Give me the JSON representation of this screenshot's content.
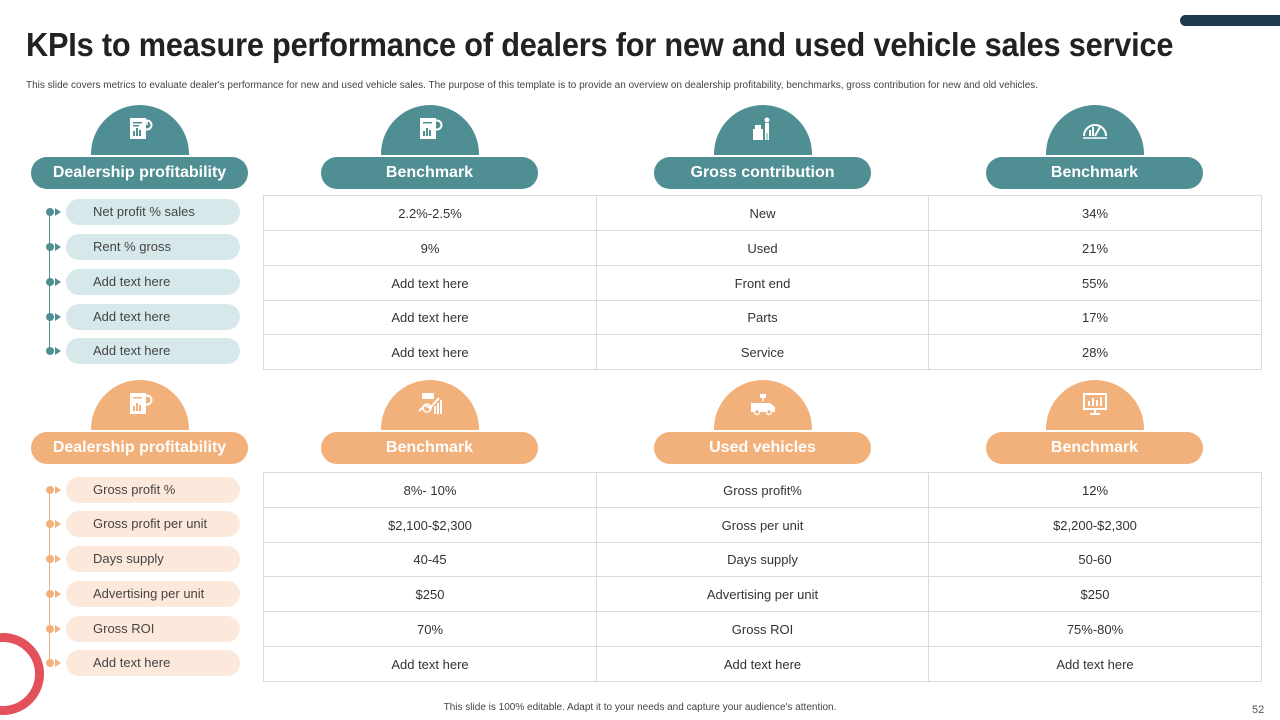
{
  "title": "KPIs to measure performance of dealers for new and used vehicle sales service",
  "subtitle": "This slide covers metrics to evaluate dealer's performance for new and used vehicle sales. The  purpose of this template  is to provide an overview on dealership profitability, benchmarks, gross contribution for new and old vehicles.",
  "colors": {
    "teal": "#4f8e92",
    "orange": "#f2b07a",
    "ring": "#e3515a"
  },
  "top_section": {
    "headers": [
      "Dealership profitability",
      "Benchmark",
      "Gross contribution",
      "Benchmark"
    ],
    "icons": [
      "report-chart-icon",
      "report-chart-icon",
      "person-boxes-icon",
      "speedometer-icon"
    ],
    "labels": [
      "Net profit % sales",
      "Rent % gross",
      "Add text here",
      "Add text here",
      "Add text here"
    ],
    "rows": [
      [
        "2.2%-2.5%",
        "New",
        "34%"
      ],
      [
        "9%",
        "Used",
        "21%"
      ],
      [
        "Add text here",
        "Front end",
        "55%"
      ],
      [
        "Add text here",
        "Parts",
        "17%"
      ],
      [
        "Add text here",
        "Service",
        "28%"
      ]
    ]
  },
  "bottom_section": {
    "headers": [
      "Dealership profitability",
      "Benchmark",
      "Used vehicles",
      "Benchmark"
    ],
    "icons": [
      "report-chart-icon",
      "analytics-icon",
      "van-icon",
      "monitor-chart-icon"
    ],
    "labels": [
      "Gross profit %",
      "Gross profit per unit",
      "Days supply",
      "Advertising per unit",
      "Gross ROI",
      "Add text here"
    ],
    "rows": [
      [
        "8%- 10%",
        "Gross profit%",
        "12%"
      ],
      [
        "$2,100-$2,300",
        "Gross per unit",
        "$2,200-$2,300"
      ],
      [
        "40-45",
        "Days supply",
        "50-60"
      ],
      [
        "$250",
        "Advertising  per unit",
        "$250"
      ],
      [
        "70%",
        "Gross ROI",
        "75%-80%"
      ],
      [
        "Add text here",
        "Add text here",
        "Add text here"
      ]
    ]
  },
  "footer": "This slide is 100% editable. Adapt it to your needs and capture your audience's attention.",
  "page_number": "52"
}
